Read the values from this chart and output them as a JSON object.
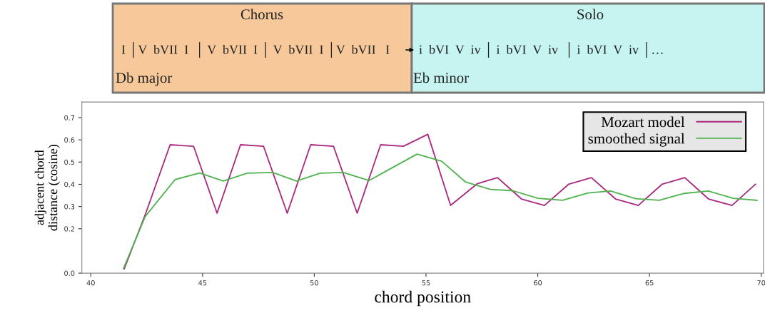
{
  "chart_data": {
    "type": "line",
    "xlabel": "chord position",
    "ylabel": "adjacent chord\ndistance (cosine)",
    "xlim": [
      39.6,
      70.1
    ],
    "ylim": [
      0,
      0.77
    ],
    "xticks": [
      40,
      45,
      50,
      55,
      60,
      65,
      70
    ],
    "yticks": [
      {
        "value": 0,
        "label": "0.0"
      },
      0.2,
      0.3,
      0.4,
      0.5,
      0.6,
      0.7
    ],
    "grid": false,
    "legend": "top right",
    "marker": "none",
    "line_style": "solid",
    "annotations": [
      "Chorus",
      "I │V  bVII  I  │ V  bVII  I │ V  bVII  I │V  bVII   I",
      "Db major",
      "Solo",
      "i  bVI  V  iv │ i  bVI  V  iv  │ i  bVI  V  iv │…",
      "Eb minor"
    ],
    "series": [
      {
        "name": "Mozart model",
        "color": "#a8287f",
        "x": [
          41.5,
          42.46,
          43.55,
          44.6,
          45.65,
          46.7,
          47.73,
          48.79,
          49.84,
          50.86,
          51.92,
          52.97,
          53.99,
          55.08,
          56.1,
          57.3,
          58.2,
          59.27,
          60.3,
          61.38,
          62.4,
          63.48,
          64.5,
          65.56,
          66.58,
          67.64,
          68.69,
          69.74
        ],
        "values": [
          0.02,
          0.27,
          0.578,
          0.571,
          0.27,
          0.578,
          0.571,
          0.27,
          0.578,
          0.571,
          0.27,
          0.578,
          0.571,
          0.625,
          0.305,
          0.403,
          0.43,
          0.334,
          0.305,
          0.4,
          0.43,
          0.334,
          0.305,
          0.4,
          0.43,
          0.334,
          0.305,
          0.4
        ]
      },
      {
        "name": "smoothed signal",
        "color": "#4fb34f",
        "x": [
          41.46,
          42.44,
          43.77,
          44.87,
          45.93,
          47.0,
          48.14,
          49.2,
          50.27,
          51.3,
          52.45,
          53.41,
          54.6,
          55.7,
          56.76,
          57.88,
          58.89,
          60.01,
          61.11,
          62.25,
          63.26,
          64.38,
          65.44,
          66.56,
          67.63,
          68.74,
          69.81
        ],
        "values": [
          0.02,
          0.256,
          0.421,
          0.451,
          0.415,
          0.45,
          0.453,
          0.415,
          0.45,
          0.453,
          0.417,
          0.47,
          0.536,
          0.504,
          0.411,
          0.377,
          0.371,
          0.337,
          0.328,
          0.361,
          0.37,
          0.335,
          0.328,
          0.359,
          0.37,
          0.337,
          0.328
        ]
      }
    ]
  }
}
